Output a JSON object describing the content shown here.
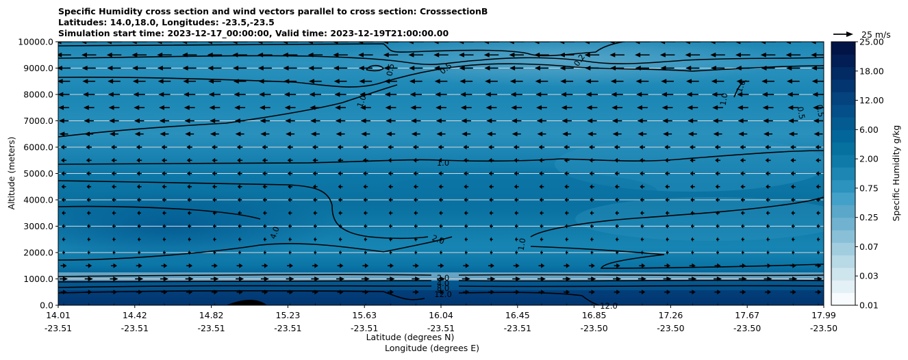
{
  "chart_data": {
    "type": "heatmap",
    "title_lines": [
      "Specific Humidity cross section and wind vectors parallel to cross section: CrosssectionB",
      "Latitudes: 14.0,18.0, Longitudes: -23.5,-23.5",
      "Simulation start time: 2023-12-17_00:00:00, Valid time: 2023-12-19T21:00:00.00"
    ],
    "ylabel": "Altitude (meters)",
    "xlabel_lat": "Latitude (degrees N)",
    "xlabel_lon": "Longitude (degrees E)",
    "ylim": [
      0,
      10000
    ],
    "yticks": [
      "0.0",
      "1000.0",
      "2000.0",
      "3000.0",
      "4000.0",
      "5000.0",
      "6000.0",
      "7000.0",
      "8000.0",
      "9000.0",
      "10000.0"
    ],
    "xticks": [
      {
        "lat": "14.01",
        "lon": "-23.51"
      },
      {
        "lat": "14.42",
        "lon": "-23.51"
      },
      {
        "lat": "14.82",
        "lon": "-23.51"
      },
      {
        "lat": "15.23",
        "lon": "-23.51"
      },
      {
        "lat": "15.63",
        "lon": "-23.51"
      },
      {
        "lat": "16.04",
        "lon": "-23.51"
      },
      {
        "lat": "16.45",
        "lon": "-23.51"
      },
      {
        "lat": "16.85",
        "lon": "-23.50"
      },
      {
        "lat": "17.26",
        "lon": "-23.50"
      },
      {
        "lat": "17.67",
        "lon": "-23.50"
      },
      {
        "lat": "17.99",
        "lon": "-23.50"
      }
    ],
    "colorbar": {
      "label": "Specific Humidity g/kg",
      "tick_labels": [
        "0.01",
        "0.03",
        "0.07",
        "0.25",
        "0.75",
        "2.00",
        "6.00",
        "12.00",
        "18.00",
        "25.00"
      ],
      "colors": [
        "#f7fbfd",
        "#e3f0f5",
        "#cfe5ee",
        "#b8d9e6",
        "#a1cddf",
        "#89c0d7",
        "#70b2cf",
        "#5aa7c9",
        "#43a0c9",
        "#2c92be",
        "#1d86b3",
        "#0f7aa8",
        "#06709f",
        "#02669a",
        "#035b92",
        "#044f89",
        "#04437d",
        "#033670",
        "#022a63",
        "#021e55",
        "#021446"
      ]
    },
    "quiver_key_label": "25 m/s",
    "contour_labels": [
      "0.2",
      "0.5",
      "0.5",
      "1.0",
      "1.0",
      "1.0",
      "0.5",
      "0.5",
      "1.0",
      "4.0",
      "2.0",
      "1.0",
      "2.0",
      "4.0",
      "8.0",
      "12.0",
      "12.0"
    ],
    "wind_summary": {
      "upper_levels_m": [
        6500,
        10000
      ],
      "upper_direction": "westward",
      "mid_levels_m": [
        2000,
        6500
      ],
      "mid_direction": "weak westward",
      "low_levels_m": [
        0,
        1500
      ],
      "low_direction": "eastward"
    }
  }
}
